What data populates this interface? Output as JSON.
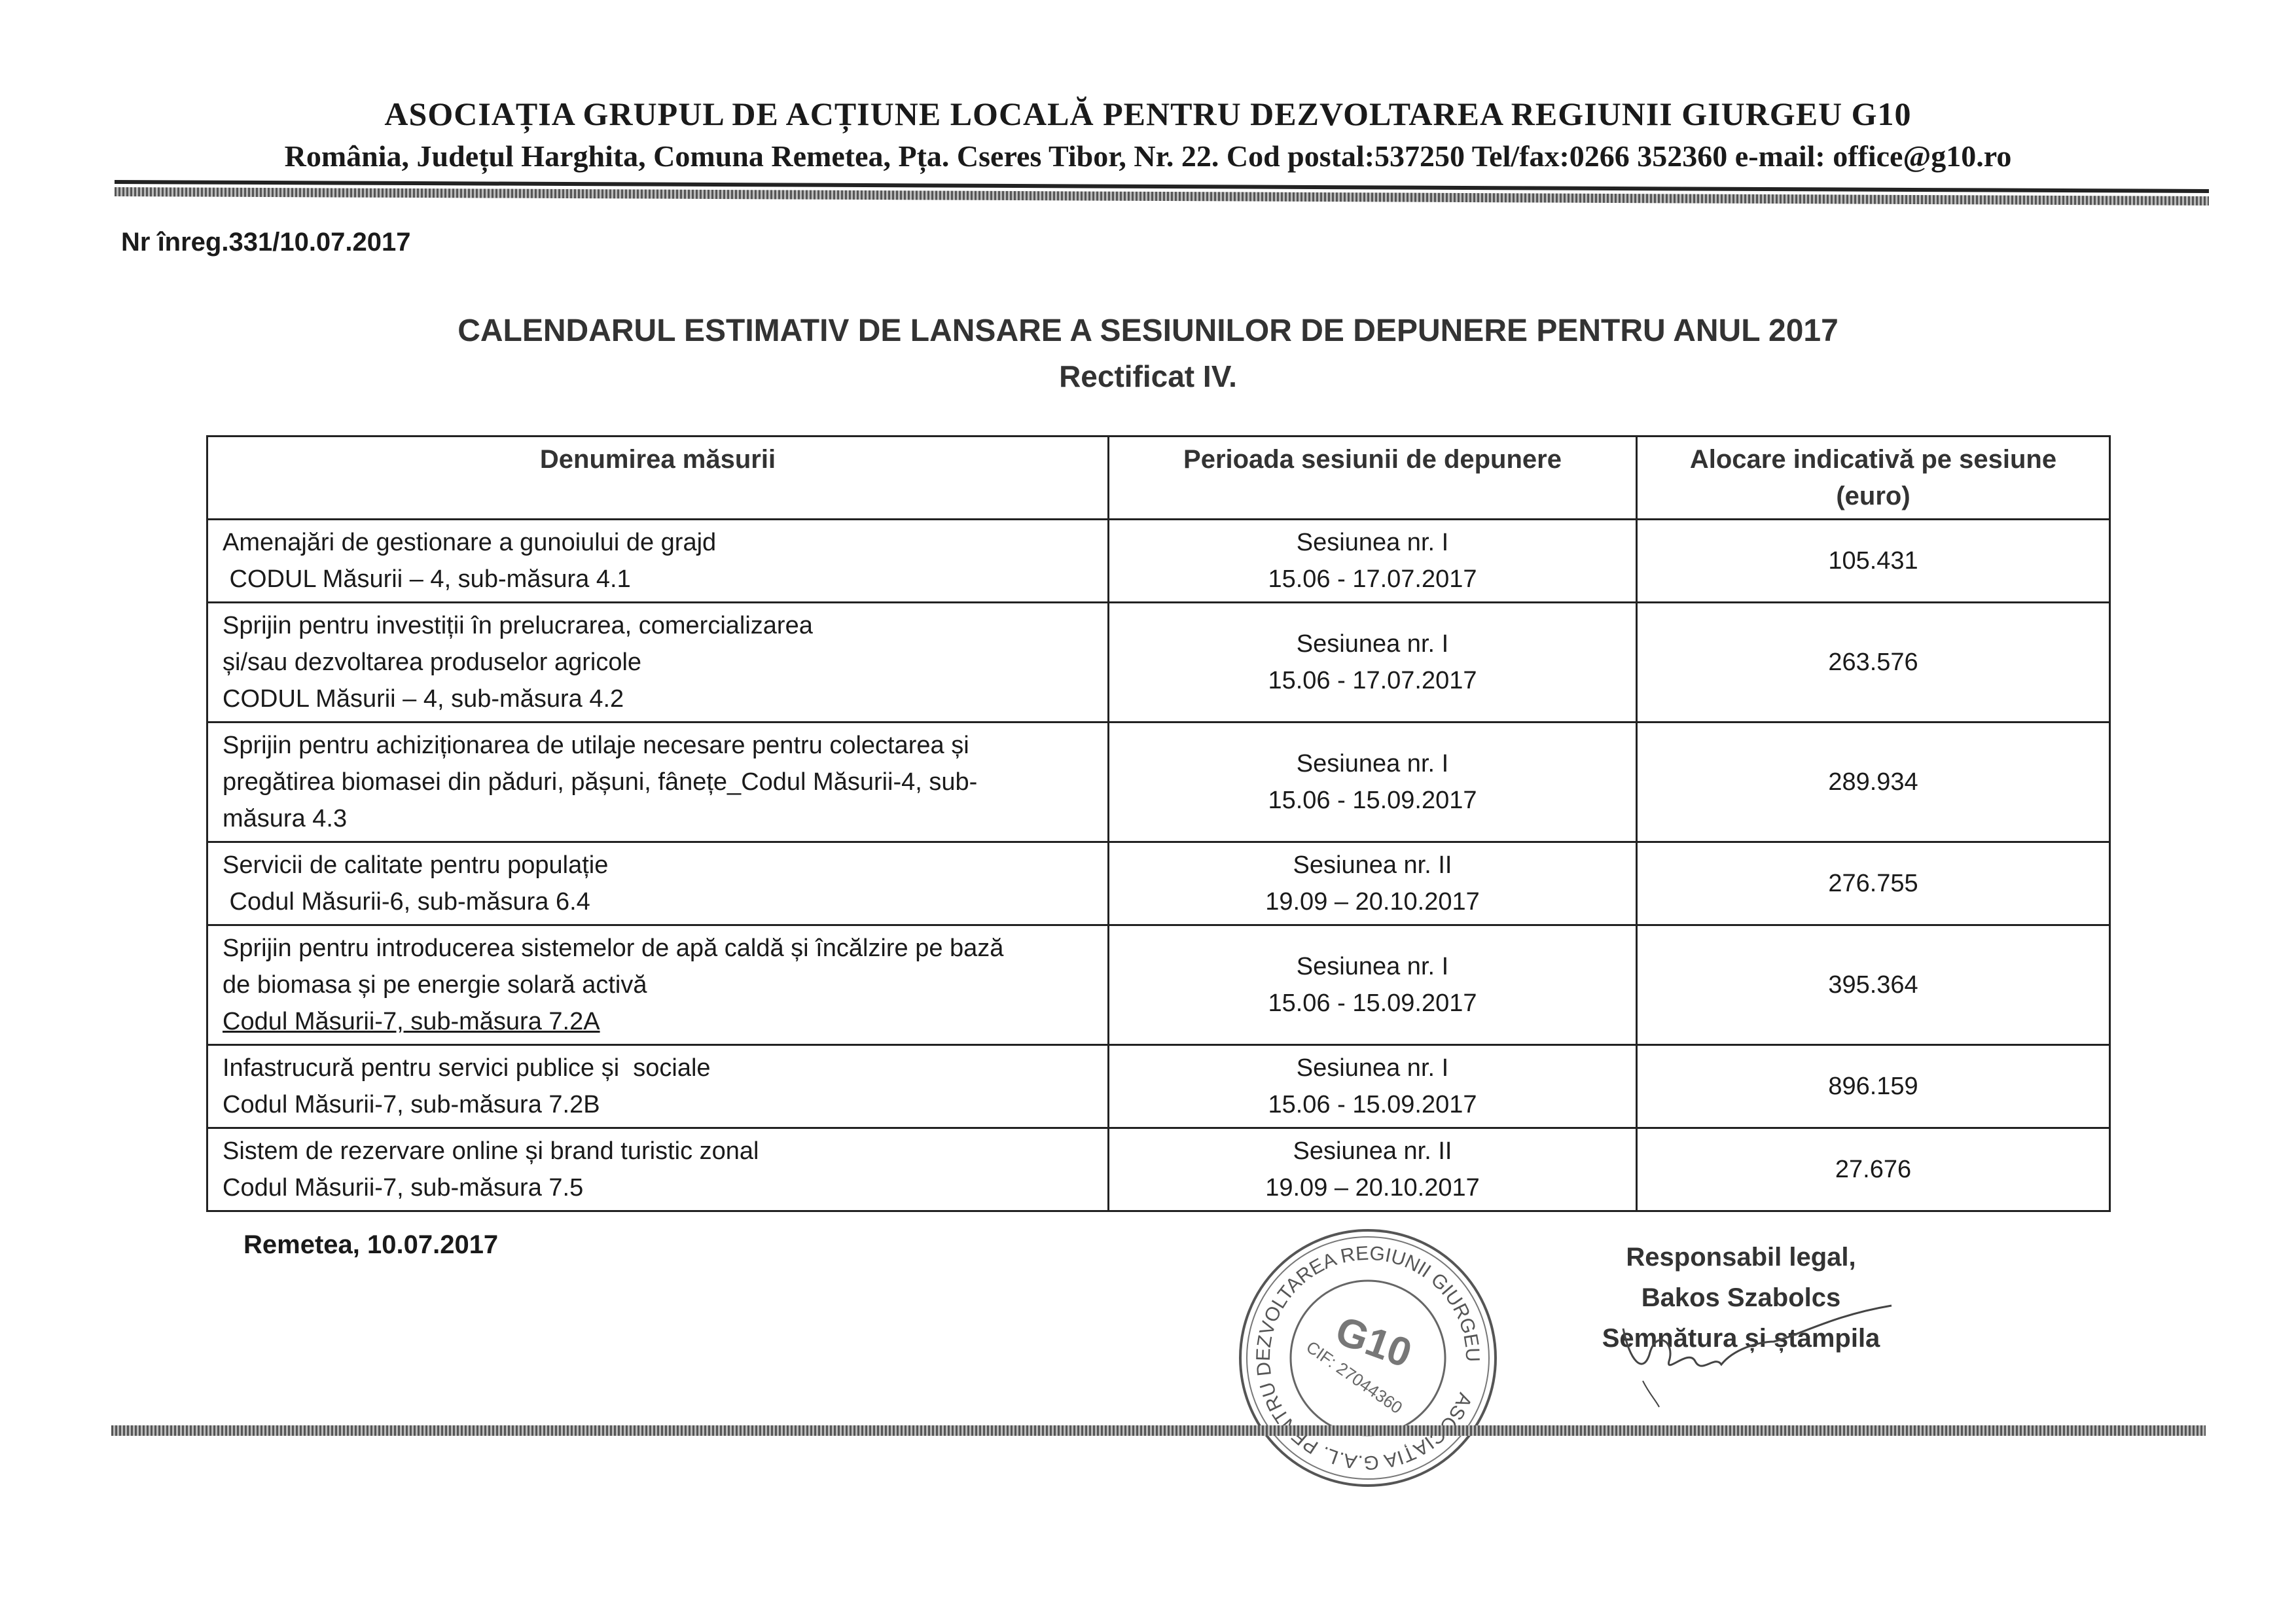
{
  "letterhead": {
    "organization": "ASOCIAȚIA GRUPUL DE ACȚIUNE LOCALĂ PENTRU DEZVOLTAREA REGIUNII GIURGEU G10",
    "address": "România, Județul Harghita, Comuna Remetea, Pța. Cseres Tibor, Nr. 22. Cod postal:537250 Tel/fax:0266 352360 e-mail: office@g10.ro"
  },
  "registration": "Nr înreg.331/10.07.2017",
  "title": "CALENDARUL ESTIMATIV DE LANSARE A SESIUNILOR DE DEPUNERE PENTRU ANUL 2017",
  "subtitle": "Rectificat IV.",
  "table": {
    "headers": [
      "Denumirea măsurii",
      "Perioada sesiunii de depunere",
      "Alocare indicativă pe sesiune (euro)"
    ],
    "rows": [
      {
        "name": [
          "Amenajări de gestionare a gunoiului de grajd",
          " CODUL Măsurii – 4, sub-măsura 4.1"
        ],
        "session": "Sesiunea nr. I",
        "period": "15.06 - 17.07.2017",
        "amount": "105.431"
      },
      {
        "name": [
          "Sprijin pentru investiții în prelucrarea, comercializarea",
          "și/sau dezvoltarea produselor agricole",
          "CODUL Măsurii – 4, sub-măsura 4.2"
        ],
        "session": "Sesiunea nr. I",
        "period": "15.06 - 17.07.2017",
        "amount": "263.576"
      },
      {
        "name": [
          "Sprijin pentru achiziționarea de utilaje necesare pentru colectarea și",
          "pregătirea biomasei din păduri, pășuni, fânețe_Codul Măsurii-4, sub-",
          "măsura 4.3"
        ],
        "session": "Sesiunea nr. I",
        "period": "15.06 - 15.09.2017",
        "amount": "289.934"
      },
      {
        "name": [
          "Servicii de calitate pentru populație",
          " Codul Măsurii-6, sub-măsura 6.4"
        ],
        "session": "Sesiunea nr. II",
        "period": "19.09 – 20.10.2017",
        "amount": "276.755"
      },
      {
        "name": [
          "Sprijin pentru introducerea sistemelor de apă caldă și încălzire pe bază",
          "de biomasa și pe energie solară activă",
          "Codul Măsurii-7, sub-măsura 7.2A"
        ],
        "session": "Sesiunea nr. I",
        "period": "15.06 - 15.09.2017",
        "amount": "395.364"
      },
      {
        "name": [
          "Infastrucură pentru servici publice și  sociale",
          "Codul Măsurii-7, sub-măsura 7.2B"
        ],
        "session": "Sesiunea nr. I",
        "period": "15.06 - 15.09.2017",
        "amount": "896.159"
      },
      {
        "name": [
          "Sistem de rezervare online și brand turistic zonal",
          "Codul Măsurii-7, sub-măsura 7.5"
        ],
        "session": "Sesiunea nr. II",
        "period": "19.09 – 20.10.2017",
        "amount": "27.676"
      }
    ]
  },
  "place_date": "Remetea, 10.07.2017",
  "signature_block": {
    "role": "Responsabil legal,",
    "name": "Bakos Szabolcs",
    "note": "Semnătura și ștampila"
  },
  "stamp": {
    "ring_text": "ASOCIAȚIA G.A.L. PENTRU DEZVOLTAREA REGIUNII GIURGEU",
    "center": "G10",
    "cif": "CIF: 27044360"
  }
}
